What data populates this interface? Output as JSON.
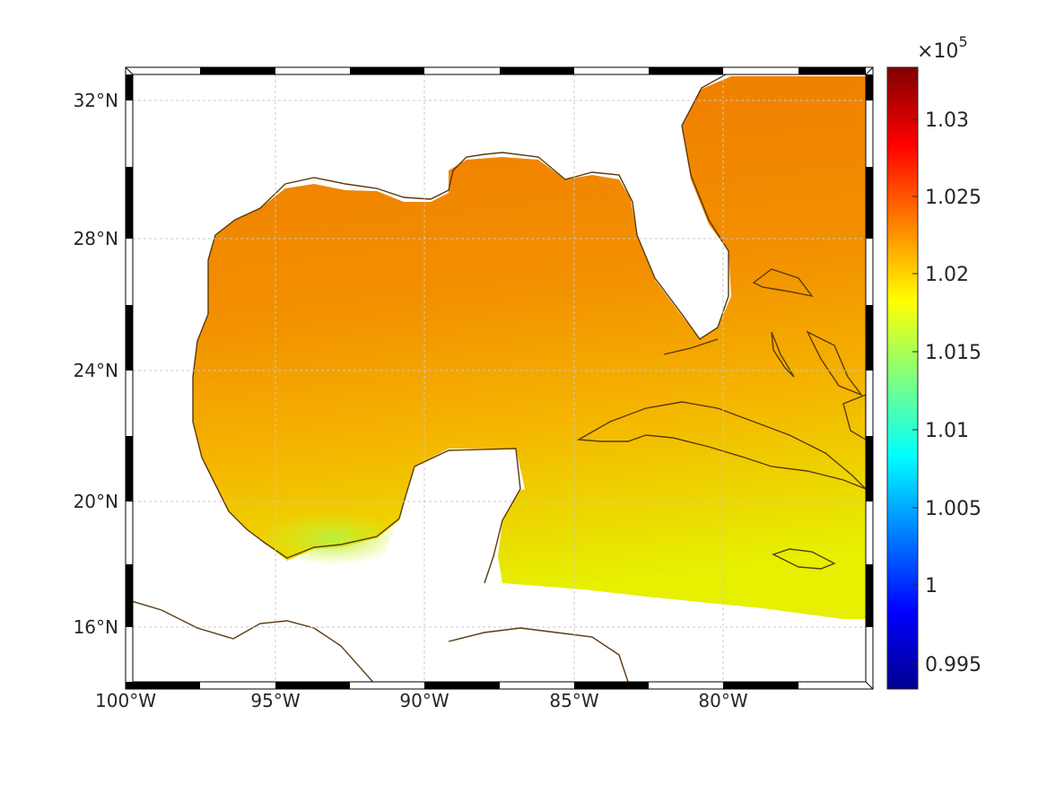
{
  "map": {
    "lat_labels": [
      "32°N",
      "28°N",
      "24°N",
      "20°N",
      "16°N"
    ],
    "lon_labels": [
      "100°W",
      "95°W",
      "90°W",
      "85°W",
      "80°W"
    ],
    "grid": true,
    "extent": {
      "lon_min": -100,
      "lon_max": -75,
      "lat_min": 14.2,
      "lat_max": 33
    },
    "colors": {
      "coastline": "#5a3a10",
      "field_high": "#f07f00",
      "field_mid": "#f5b800",
      "field_low": "#e8f000",
      "field_min": "#b8f030"
    }
  },
  "colorbar": {
    "exponent_label": "×10",
    "exponent_power": "5",
    "tick_labels": [
      "1.03",
      "1.025",
      "1.02",
      "1.015",
      "1.01",
      "1.005",
      "1",
      "0.995"
    ],
    "range": [
      0.9933,
      1.033
    ],
    "colormap": "jet"
  }
}
